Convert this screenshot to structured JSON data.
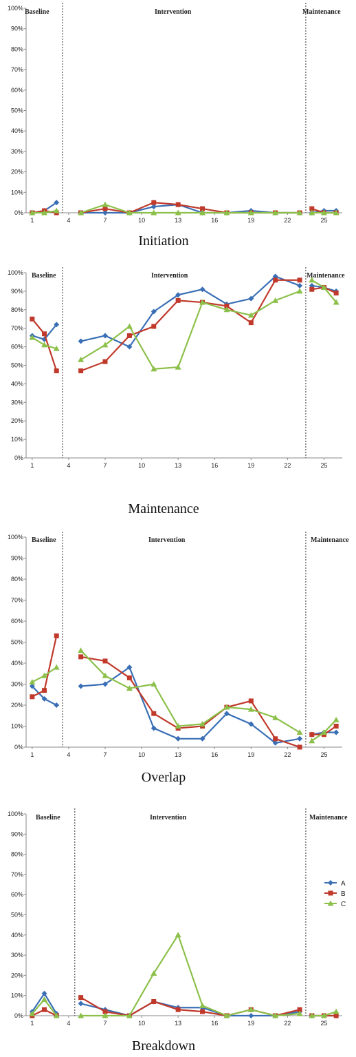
{
  "colors": {
    "A": "#3a6fb5",
    "B": "#c0392b",
    "C": "#8cc04a"
  },
  "legend": [
    {
      "key": "A",
      "label": "A"
    },
    {
      "key": "B",
      "label": "B"
    },
    {
      "key": "C",
      "label": "C"
    }
  ],
  "chart_data": [
    {
      "type": "line",
      "title": "Initiation",
      "ylim": [
        0,
        100
      ],
      "yticks": [
        "0%",
        "10%",
        "20%",
        "30%",
        "40%",
        "50%",
        "60%",
        "70%",
        "80%",
        "90%",
        "100%"
      ],
      "xlim": [
        0.5,
        26.5
      ],
      "xticks": [
        1,
        4,
        7,
        10,
        13,
        16,
        19,
        22,
        25
      ],
      "phases": [
        "Baseline",
        "Intervention",
        "Maintenance"
      ],
      "phase_lines": [
        3.5,
        23.5
      ],
      "series": [
        {
          "name": "A",
          "x": [
            1,
            2,
            3,
            5,
            7,
            9,
            11,
            13,
            15,
            17,
            19,
            21,
            23,
            24,
            25,
            26
          ],
          "values": [
            0,
            1,
            5,
            0,
            0,
            0,
            3,
            4,
            0,
            0,
            1,
            0,
            0,
            0,
            1,
            1
          ]
        },
        {
          "name": "B",
          "x": [
            1,
            2,
            3,
            5,
            7,
            9,
            11,
            13,
            15,
            17,
            19,
            21,
            23,
            24,
            25,
            26
          ],
          "values": [
            0,
            1,
            0,
            0,
            2,
            0,
            5,
            4,
            2,
            0,
            0,
            0,
            0,
            2,
            0,
            0
          ]
        },
        {
          "name": "C",
          "x": [
            1,
            2,
            3,
            5,
            7,
            9,
            11,
            13,
            15,
            17,
            19,
            21,
            23,
            24,
            25,
            26
          ],
          "values": [
            0,
            0,
            1,
            0,
            4,
            0,
            0,
            0,
            0,
            0,
            0,
            0,
            0,
            0,
            0,
            0
          ]
        }
      ]
    },
    {
      "type": "line",
      "title": "Maintenance",
      "ylim": [
        0,
        100
      ],
      "yticks": [
        "0%",
        "10%",
        "20%",
        "30%",
        "40%",
        "50%",
        "60%",
        "70%",
        "80%",
        "90%",
        "100%"
      ],
      "xlim": [
        0.5,
        26.5
      ],
      "xticks": [
        1,
        4,
        7,
        10,
        13,
        16,
        19,
        22,
        25
      ],
      "phases": [
        "Baseline",
        "Intervention",
        "Maintenance"
      ],
      "phase_lines": [
        3.5,
        23.5
      ],
      "series": [
        {
          "name": "A",
          "x": [
            1,
            2,
            3,
            5,
            7,
            9,
            11,
            13,
            15,
            17,
            19,
            21,
            23,
            24,
            25,
            26
          ],
          "values": [
            66,
            64,
            72,
            63,
            66,
            60,
            79,
            88,
            91,
            83,
            86,
            98,
            93,
            93,
            92,
            90
          ]
        },
        {
          "name": "B",
          "x": [
            1,
            2,
            3,
            5,
            7,
            9,
            11,
            13,
            15,
            17,
            19,
            21,
            23,
            24,
            25,
            26
          ],
          "values": [
            75,
            67,
            47,
            47,
            52,
            66,
            71,
            85,
            84,
            82,
            73,
            96,
            96,
            91,
            92,
            89
          ]
        },
        {
          "name": "C",
          "x": [
            1,
            2,
            3,
            5,
            7,
            9,
            11,
            13,
            15,
            17,
            19,
            21,
            23,
            24,
            25,
            26
          ],
          "values": [
            65,
            61,
            59,
            53,
            61,
            71,
            48,
            49,
            84,
            80,
            77,
            85,
            90,
            96,
            92,
            84
          ]
        }
      ]
    },
    {
      "type": "line",
      "title": "Overlap",
      "ylim": [
        0,
        100
      ],
      "yticks": [
        "0%",
        "10%",
        "20%",
        "30%",
        "40%",
        "50%",
        "60%",
        "70%",
        "80%",
        "90%",
        "100%"
      ],
      "xlim": [
        0.5,
        26.5
      ],
      "xticks": [
        1,
        4,
        7,
        10,
        13,
        16,
        19,
        22,
        25
      ],
      "phases": [
        "Baseline",
        "Intervention",
        "Maintenance"
      ],
      "phase_lines": [
        3.5,
        23.5
      ],
      "series": [
        {
          "name": "A",
          "x": [
            1,
            2,
            3,
            5,
            7,
            9,
            11,
            13,
            15,
            17,
            19,
            21,
            23,
            24,
            25,
            26
          ],
          "values": [
            29,
            23,
            20,
            29,
            30,
            38,
            9,
            4,
            4,
            16,
            11,
            2,
            4,
            6,
            7,
            7
          ]
        },
        {
          "name": "B",
          "x": [
            1,
            2,
            3,
            5,
            7,
            9,
            11,
            13,
            15,
            17,
            19,
            21,
            23,
            24,
            25,
            26
          ],
          "values": [
            24,
            27,
            53,
            43,
            41,
            33,
            16,
            9,
            10,
            19,
            22,
            4,
            0,
            6,
            6,
            10
          ]
        },
        {
          "name": "C",
          "x": [
            1,
            2,
            3,
            5,
            7,
            9,
            11,
            13,
            15,
            17,
            19,
            21,
            23,
            24,
            25,
            26
          ],
          "values": [
            31,
            34,
            38,
            46,
            34,
            28,
            30,
            10,
            11,
            19,
            18,
            14,
            7,
            3,
            7,
            13
          ]
        }
      ]
    },
    {
      "type": "line",
      "title": "Breakdown",
      "ylim": [
        0,
        100
      ],
      "yticks": [
        "0%",
        "10%",
        "20%",
        "30%",
        "40%",
        "50%",
        "60%",
        "70%",
        "80%",
        "90%",
        "100%"
      ],
      "xlim": [
        0.5,
        26.5
      ],
      "xticks": [
        1,
        4,
        7,
        10,
        13,
        16,
        19,
        22,
        25
      ],
      "phases": [
        "Baseline",
        "Intervention",
        "Maintenance"
      ],
      "phase_lines": [
        4.5,
        23.5
      ],
      "series": [
        {
          "name": "A",
          "x": [
            1,
            2,
            3,
            5,
            7,
            9,
            11,
            13,
            15,
            17,
            19,
            21,
            23,
            24,
            25,
            26
          ],
          "values": [
            2,
            11,
            1,
            6,
            3,
            0,
            7,
            4,
            4,
            0,
            0,
            0,
            2,
            0,
            0,
            0
          ]
        },
        {
          "name": "B",
          "x": [
            1,
            2,
            3,
            5,
            7,
            9,
            11,
            13,
            15,
            17,
            19,
            21,
            23,
            24,
            25,
            26
          ],
          "values": [
            0,
            3,
            0,
            9,
            2,
            0,
            7,
            3,
            2,
            0,
            3,
            0,
            3,
            0,
            0,
            0
          ]
        },
        {
          "name": "C",
          "x": [
            1,
            2,
            3,
            5,
            7,
            9,
            11,
            13,
            15,
            17,
            19,
            21,
            23,
            24,
            25,
            26
          ],
          "values": [
            1,
            8,
            0,
            0,
            0,
            0,
            21,
            40,
            5,
            0,
            3,
            0,
            1,
            0,
            0,
            2
          ]
        }
      ]
    }
  ]
}
